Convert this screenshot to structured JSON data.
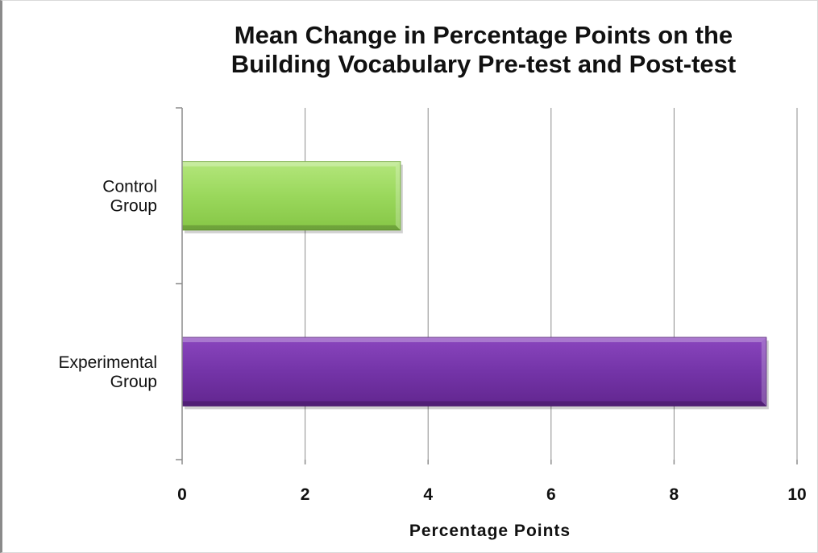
{
  "chart_data": {
    "type": "bar",
    "orientation": "horizontal",
    "title": "Mean Change in Percentage Points on the Building Vocabulary Pre-test and Post-test",
    "title_lines": [
      "Mean Change in Percentage Points on the",
      "Building Vocabulary Pre-test and Post-test"
    ],
    "xlabel": "Percentage Points",
    "ylabel": "",
    "categories": [
      "Control Group",
      "Experimental Group"
    ],
    "category_label_lines": [
      [
        "Control",
        "Group"
      ],
      [
        "Experimental",
        "Group"
      ]
    ],
    "values": [
      3.55,
      9.5
    ],
    "bar_colors": [
      "#92d050",
      "#7030a0"
    ],
    "xlim": [
      0,
      10
    ],
    "x_ticks": [
      0,
      2,
      4,
      6,
      8,
      10
    ],
    "grid": "vertical major gridlines",
    "legend": "none"
  }
}
